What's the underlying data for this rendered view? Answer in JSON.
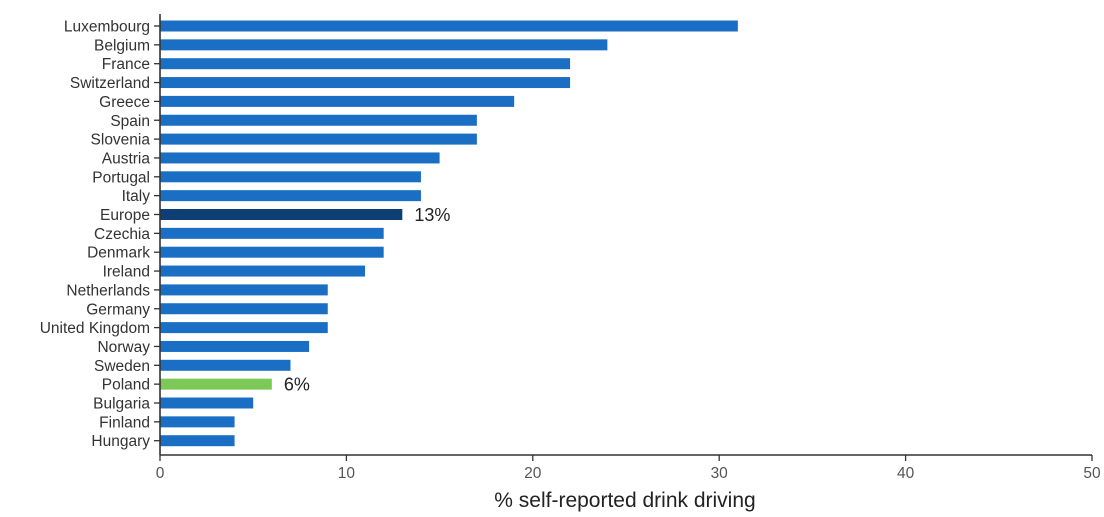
{
  "chart_data": {
    "type": "bar",
    "orientation": "horizontal",
    "xlabel": "% self-reported drink driving",
    "xlim": [
      0,
      50
    ],
    "xticks": [
      0,
      10,
      20,
      30,
      40,
      50
    ],
    "grid": false,
    "colors": {
      "default": "#1a6fc4",
      "Europe": "#0d3f75",
      "Poland": "#7dc957"
    },
    "categories": [
      "Luxembourg",
      "Belgium",
      "France",
      "Switzerland",
      "Greece",
      "Spain",
      "Slovenia",
      "Austria",
      "Portugal",
      "Italy",
      "Europe",
      "Czechia",
      "Denmark",
      "Ireland",
      "Netherlands",
      "Germany",
      "United Kingdom",
      "Norway",
      "Sweden",
      "Poland",
      "Bulgaria",
      "Finland",
      "Hungary"
    ],
    "values": [
      31,
      24,
      22,
      22,
      19,
      17,
      17,
      15,
      14,
      14,
      13,
      12,
      12,
      11,
      9,
      9,
      9,
      8,
      7,
      6,
      5,
      4,
      4
    ],
    "annotations": [
      {
        "category": "Europe",
        "text": "13%"
      },
      {
        "category": "Poland",
        "text": "6%"
      }
    ]
  }
}
